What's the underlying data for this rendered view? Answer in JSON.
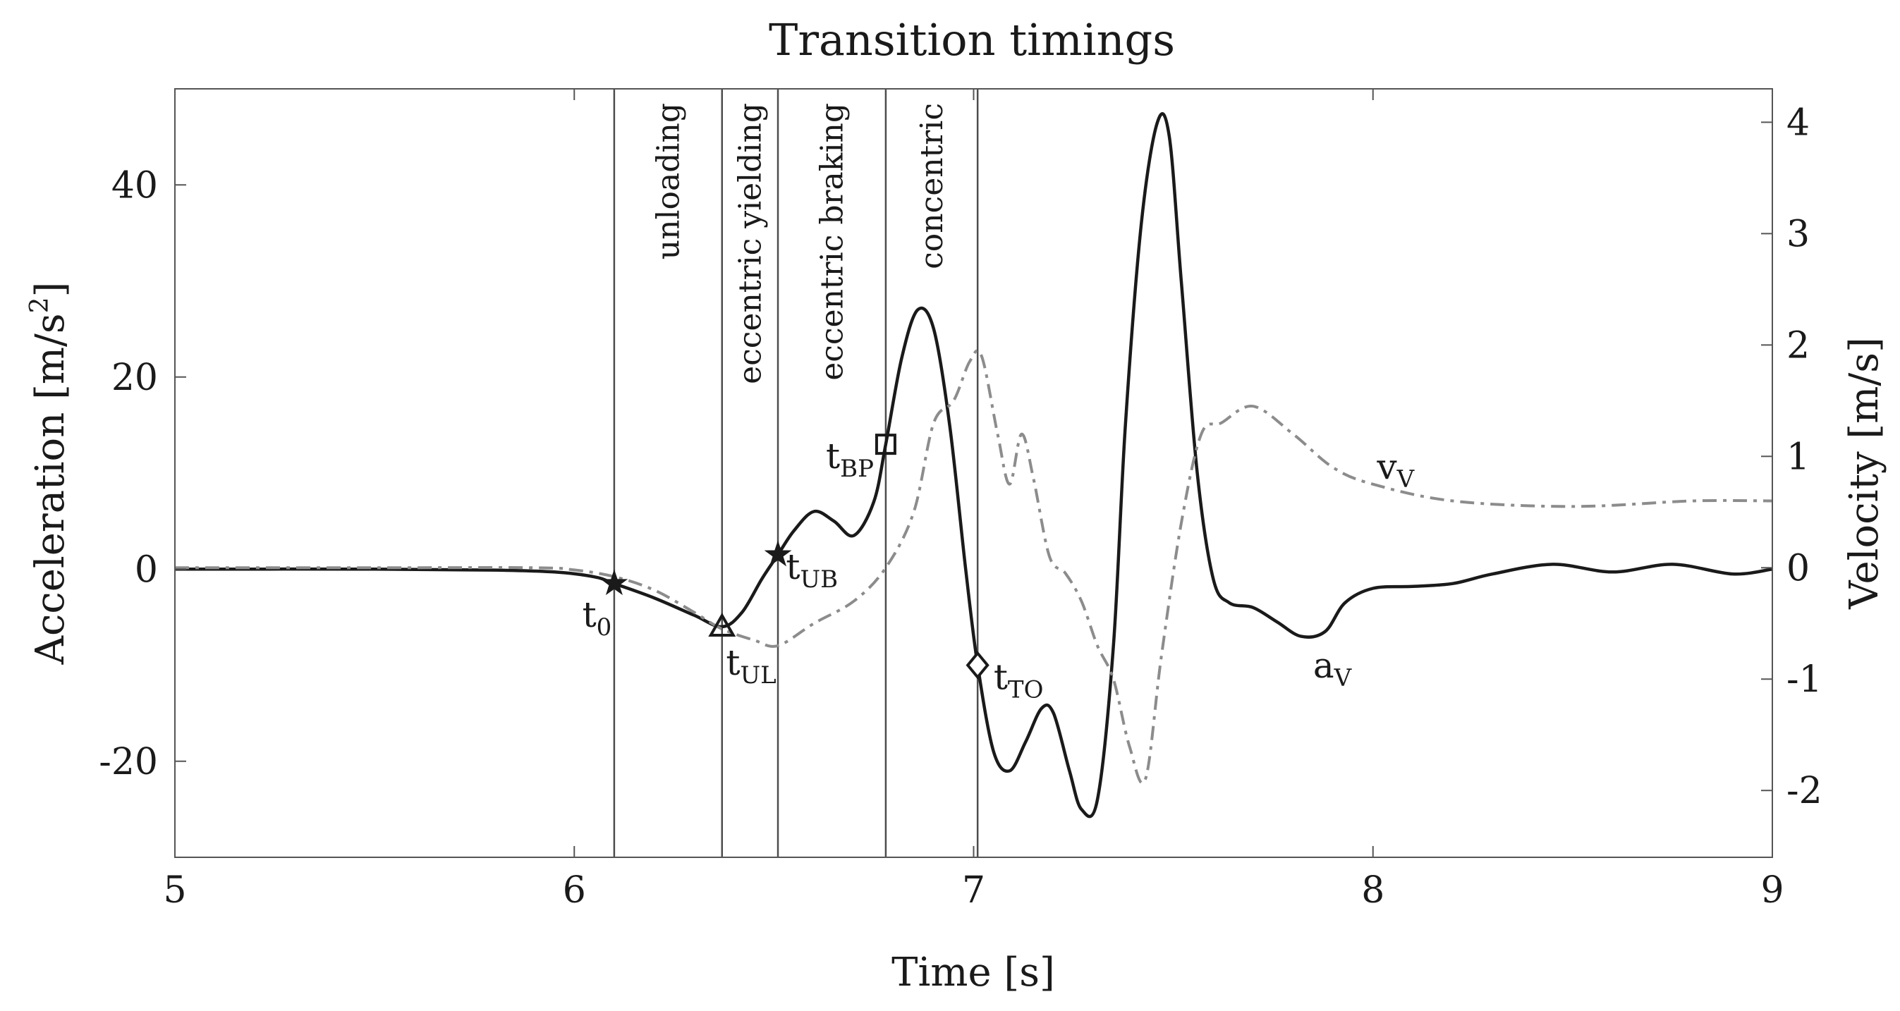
{
  "chart_data": {
    "type": "line",
    "title": "Transition timings",
    "xlabel": "Time [s]",
    "ylabel_left": "Acceleration [m/s",
    "ylabel_left_sup": "2",
    "ylabel_left_end": "]",
    "ylabel_right": "Velocity [m/s]",
    "xlim": [
      5,
      9
    ],
    "ylim_left": [
      -30,
      50
    ],
    "ylim_right": [
      -2.6,
      4.3
    ],
    "x_ticks": [
      5,
      6,
      7,
      8,
      9
    ],
    "x_tick_labels": [
      "5",
      "6",
      "7",
      "8",
      "9"
    ],
    "y_ticks_left": [
      -20,
      0,
      20,
      40
    ],
    "y_tick_labels_left": [
      "-20",
      "0",
      "20",
      "40"
    ],
    "y_ticks_right": [
      -2,
      -1,
      0,
      1,
      2,
      3,
      4
    ],
    "y_tick_labels_right": [
      "-2",
      "-1",
      "0",
      "1",
      "2",
      "3",
      "4"
    ],
    "grid": false,
    "phase_lines": [
      6.1,
      6.37,
      6.51,
      6.78,
      7.01
    ],
    "phases": [
      {
        "label": "unloading",
        "x": 6.235
      },
      {
        "label": "eccentric yielding",
        "x": 6.44
      },
      {
        "label": "eccentric braking",
        "x": 6.645
      },
      {
        "label": "concentric",
        "x": 6.895
      }
    ],
    "series": [
      {
        "name": "a_V",
        "label_main": "a",
        "label_sub": "V",
        "axis": "left",
        "style": "solid",
        "color": "#1a1a1a",
        "label_at": [
          7.85,
          -11.3
        ],
        "x": [
          5.0,
          5.5,
          5.8,
          5.95,
          6.05,
          6.1,
          6.2,
          6.3,
          6.37,
          6.42,
          6.47,
          6.51,
          6.55,
          6.6,
          6.65,
          6.7,
          6.75,
          6.78,
          6.82,
          6.86,
          6.9,
          6.94,
          6.98,
          7.01,
          7.05,
          7.09,
          7.13,
          7.17,
          7.2,
          7.24,
          7.27,
          7.31,
          7.35,
          7.38,
          7.42,
          7.46,
          7.49,
          7.52,
          7.56,
          7.6,
          7.64,
          7.7,
          7.76,
          7.82,
          7.88,
          7.93,
          8.0,
          8.1,
          8.2,
          8.3,
          8.45,
          8.6,
          8.75,
          8.9,
          9.0
        ],
        "values": [
          0,
          0,
          -0.1,
          -0.3,
          -0.8,
          -1.5,
          -3.0,
          -4.8,
          -6.0,
          -4.5,
          -1.0,
          1.5,
          4.0,
          6.0,
          5.0,
          3.5,
          7.0,
          13.0,
          22.0,
          27.0,
          25.0,
          15.0,
          0.0,
          -10.0,
          -19.0,
          -21.0,
          -18.0,
          -14.5,
          -15.0,
          -21.0,
          -25.0,
          -24.0,
          -8.0,
          15.0,
          36.0,
          46.5,
          45.0,
          30.0,
          10.0,
          -1.0,
          -3.5,
          -4.0,
          -5.5,
          -7.0,
          -6.5,
          -3.5,
          -2.0,
          -1.8,
          -1.5,
          -0.5,
          0.5,
          -0.3,
          0.5,
          -0.5,
          0.0
        ]
      },
      {
        "name": "v_V",
        "label_main": "v",
        "label_sub": "V",
        "axis": "right",
        "style": "dashdot",
        "color": "#8c8c8c",
        "label_at": [
          8.01,
          0.8
        ],
        "x": [
          5.0,
          5.5,
          5.9,
          6.0,
          6.1,
          6.2,
          6.3,
          6.37,
          6.45,
          6.51,
          6.6,
          6.7,
          6.78,
          6.85,
          6.9,
          6.95,
          6.99,
          7.02,
          7.06,
          7.09,
          7.12,
          7.15,
          7.19,
          7.23,
          7.27,
          7.31,
          7.35,
          7.39,
          7.43,
          7.47,
          7.52,
          7.57,
          7.62,
          7.7,
          7.8,
          7.9,
          8.0,
          8.2,
          8.5,
          8.8,
          9.0
        ],
        "values": [
          0,
          0,
          0,
          -0.02,
          -0.08,
          -0.2,
          -0.4,
          -0.55,
          -0.65,
          -0.7,
          -0.5,
          -0.3,
          0.0,
          0.5,
          1.3,
          1.5,
          1.85,
          1.9,
          1.2,
          0.75,
          1.2,
          0.8,
          0.1,
          -0.05,
          -0.3,
          -0.7,
          -1.0,
          -1.6,
          -1.9,
          -0.8,
          0.4,
          1.2,
          1.3,
          1.45,
          1.2,
          0.9,
          0.75,
          0.6,
          0.55,
          0.6,
          0.6
        ]
      }
    ],
    "markers": [
      {
        "name": "t0",
        "label": "t",
        "sub": "0",
        "x": 6.1,
        "y": -1.5,
        "shape": "star",
        "label_at": [
          6.02,
          -6.0
        ]
      },
      {
        "name": "tUL",
        "label": "t",
        "sub": "UL",
        "x": 6.37,
        "y": -6.0,
        "shape": "triangle",
        "label_at": [
          6.38,
          -11.0
        ]
      },
      {
        "name": "tUB",
        "label": "t",
        "sub": "UB",
        "x": 6.51,
        "y": 1.5,
        "shape": "star",
        "label_at": [
          6.53,
          -1.0
        ]
      },
      {
        "name": "tBP",
        "label": "t",
        "sub": "BP",
        "x": 6.78,
        "y": 13.0,
        "shape": "square",
        "label_at": [
          6.63,
          10.5
        ]
      },
      {
        "name": "tTO",
        "label": "t",
        "sub": "TO",
        "x": 7.01,
        "y": -10.0,
        "shape": "diamond",
        "label_at": [
          7.05,
          -12.5
        ]
      }
    ]
  }
}
